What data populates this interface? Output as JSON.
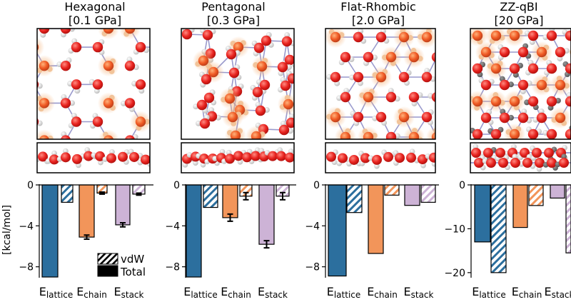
{
  "panels": [
    {
      "title": "Hexagonal",
      "pressure": "[0.1 GPa]"
    },
    {
      "title": "Pentagonal",
      "pressure": "[0.3 GPa]"
    },
    {
      "title": "Flat-Rhombic",
      "pressure": "[2.0 GPa]"
    },
    {
      "title": "ZZ-qBI",
      "pressure": "[20 GPa]"
    }
  ],
  "legend": {
    "vdw": "vdW",
    "total": "Total"
  },
  "colors": {
    "lattice": "#2c6f9e",
    "chain": "#f2955a",
    "stack": "#cdb3d6",
    "oxygen": "#e8231f",
    "hydrogen": "#e4e4e4",
    "highlight": "#f5b37a",
    "bond": "#8080c0"
  },
  "chart_data": [
    {
      "type": "bar",
      "panel": "Hexagonal",
      "categories": [
        "E_lattice",
        "E_chain",
        "E_stack"
      ],
      "ylabel": "[kcal/mol]",
      "ylim": [
        -9,
        0
      ],
      "yticks": [
        0,
        -4,
        -8
      ],
      "series": [
        {
          "name": "Total",
          "values": [
            -9.0,
            -5.1,
            -3.9
          ],
          "errors": [
            null,
            0.2,
            0.2
          ]
        },
        {
          "name": "vdW",
          "values": [
            -1.7,
            -0.8,
            -0.9
          ],
          "errors": [
            null,
            0.1,
            0.1
          ]
        }
      ]
    },
    {
      "type": "bar",
      "panel": "Pentagonal",
      "categories": [
        "E_lattice",
        "E_chain",
        "E_stack"
      ],
      "ylim": [
        -9,
        0
      ],
      "yticks": [
        0,
        -4,
        -8
      ],
      "series": [
        {
          "name": "Total",
          "values": [
            -9.0,
            -3.2,
            -5.8
          ],
          "errors": [
            null,
            0.35,
            0.35
          ]
        },
        {
          "name": "vdW",
          "values": [
            -2.2,
            -1.1,
            -1.1
          ],
          "errors": [
            null,
            0.35,
            0.35
          ]
        }
      ]
    },
    {
      "type": "bar",
      "panel": "Flat-Rhombic",
      "categories": [
        "E_lattice",
        "E_chain",
        "E_stack"
      ],
      "ylim": [
        -9,
        0
      ],
      "yticks": [
        0,
        -4,
        -8
      ],
      "series": [
        {
          "name": "Total",
          "values": [
            -8.9,
            -6.7,
            -2.0
          ],
          "errors": [
            null,
            null,
            null
          ]
        },
        {
          "name": "vdW",
          "values": [
            -2.7,
            -1.0,
            -1.7
          ],
          "errors": [
            null,
            null,
            null
          ]
        }
      ]
    },
    {
      "type": "bar",
      "panel": "ZZ-qBI",
      "categories": [
        "E_lattice",
        "E_chain",
        "E_stack"
      ],
      "ylim": [
        -21,
        0
      ],
      "yticks": [
        0,
        -10,
        -20
      ],
      "series": [
        {
          "name": "Total",
          "values": [
            -13.0,
            -9.7,
            -3.0
          ],
          "errors": [
            null,
            null,
            null
          ]
        },
        {
          "name": "vdW",
          "values": [
            -20.0,
            -4.7,
            -15.5
          ],
          "errors": [
            null,
            null,
            null
          ]
        }
      ]
    }
  ]
}
